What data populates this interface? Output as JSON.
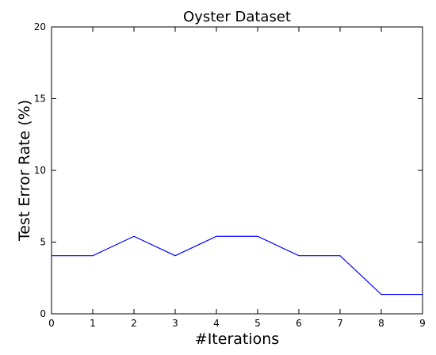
{
  "chart_data": {
    "type": "line",
    "title": "Oyster Dataset",
    "xlabel": "#Iterations",
    "ylabel": "Test Error Rate (%)",
    "x": [
      0,
      1,
      2,
      3,
      4,
      5,
      6,
      7,
      8,
      9
    ],
    "xlim": [
      0,
      9
    ],
    "ylim": [
      0,
      20
    ],
    "xticks": [
      "0",
      "1",
      "2",
      "3",
      "4",
      "5",
      "6",
      "7",
      "8",
      "9"
    ],
    "yticks": [
      "0",
      "5",
      "10",
      "15",
      "20"
    ],
    "grid": false,
    "series": [
      {
        "values": [
          4.05,
          4.05,
          5.4,
          4.05,
          5.4,
          5.4,
          4.05,
          4.05,
          1.35,
          1.35
        ],
        "color": "#0000ff"
      }
    ]
  }
}
